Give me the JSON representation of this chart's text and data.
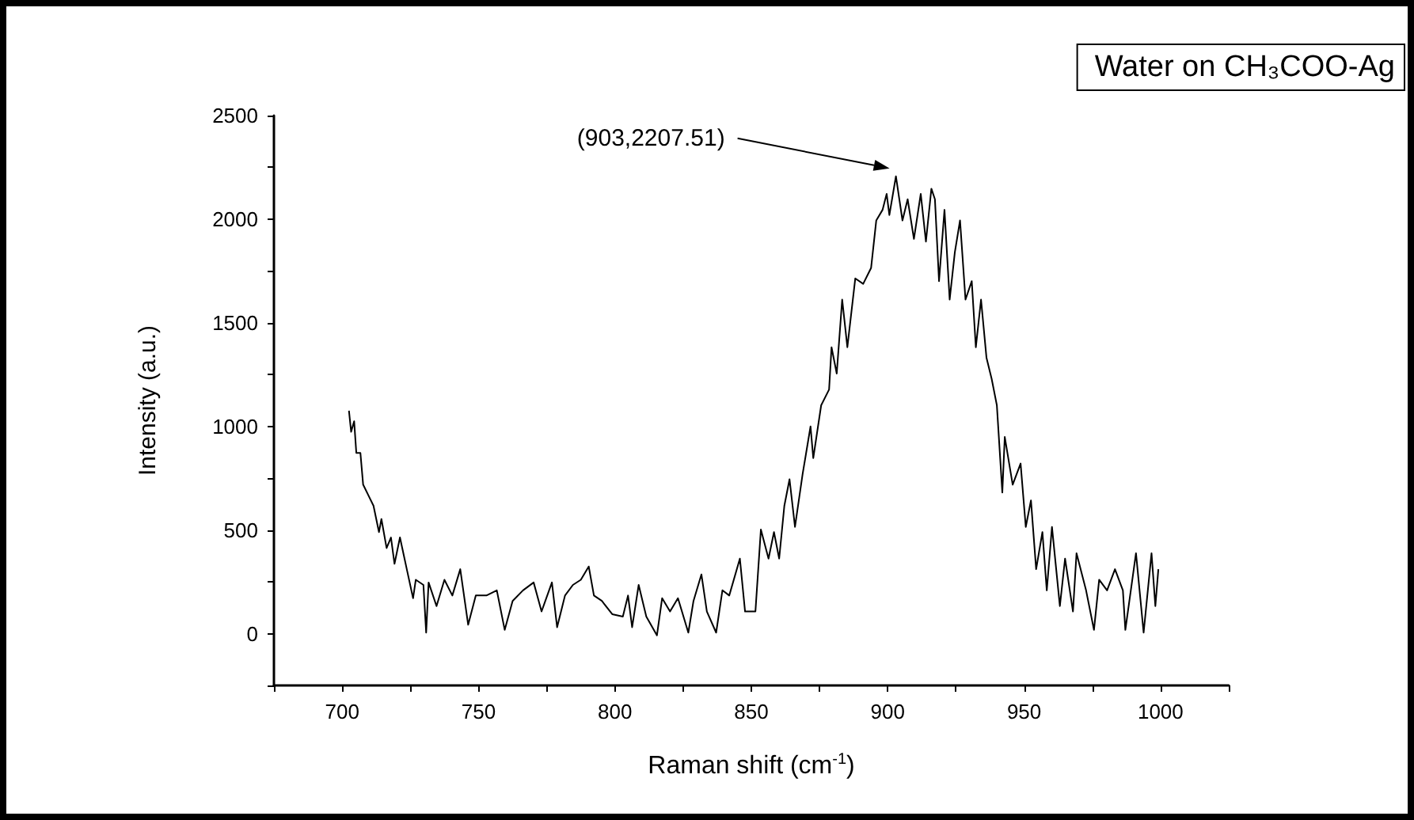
{
  "chart_data": {
    "type": "line",
    "xlabel": "Raman shift (cm$^{-1}$)",
    "ylabel": "Intensity (a.u.)",
    "xlim": [
      675,
      1025
    ],
    "xticks": [
      {
        "value": 675,
        "label": null
      },
      700,
      {
        "value": 725,
        "label": null
      },
      750,
      {
        "value": 775,
        "label": null
      },
      800,
      {
        "value": 825,
        "label": null
      },
      850,
      {
        "value": 875,
        "label": null
      },
      900,
      {
        "value": 925,
        "label": null
      },
      950,
      {
        "value": 975,
        "label": null
      },
      1000,
      {
        "value": 1025,
        "label": null
      }
    ],
    "ylim": [
      -250,
      2500
    ],
    "yticks": [
      {
        "value": -250,
        "label": null
      },
      0,
      {
        "value": 250,
        "label": null
      },
      500,
      {
        "value": 750,
        "label": null
      },
      1000,
      {
        "value": 1250,
        "label": null
      },
      1500,
      {
        "value": 1750,
        "label": null
      },
      2000,
      {
        "value": 2250,
        "label": null
      },
      2500
    ],
    "grid": false,
    "legend": "top right",
    "marker": "none",
    "line_style": "solid",
    "annotations": [
      "(903,2207.51)"
    ],
    "x": [
      702.5,
      703.3,
      704.4,
      705.2,
      706.7,
      707.7,
      709.6,
      711.5,
      713.5,
      714.4,
      716.3,
      717.9,
      719.2,
      721.2,
      723.7,
      726,
      727,
      729.8,
      730.8,
      731.7,
      734.6,
      737.5,
      740.4,
      743.3,
      746.2,
      749,
      752.9,
      756.7,
      759.6,
      762.5,
      766.3,
      770.2,
      773.1,
      776.9,
      778.8,
      781.7,
      784.6,
      787.5,
      790.4,
      792.3,
      795.2,
      799,
      802.9,
      804.8,
      806.3,
      808.7,
      811.5,
      815.4,
      817.3,
      820.2,
      823.1,
      826.9,
      828.8,
      831.7,
      833.7,
      837.1,
      839.4,
      841.9,
      845.8,
      847.7,
      851.5,
      853.5,
      856.3,
      858.3,
      860.2,
      862.1,
      864,
      866,
      868.8,
      871.7,
      872.7,
      875.6,
      878.5,
      879.4,
      881.3,
      883.3,
      885.2,
      888.1,
      891,
      893.9,
      895.8,
      898.1,
      899.6,
      900.6,
      903,
      905.4,
      907.3,
      909.6,
      912.1,
      914,
      916,
      917.3,
      918.8,
      920.8,
      922.7,
      924.6,
      926.5,
      928.5,
      930.8,
      932.3,
      934.2,
      936.2,
      938.1,
      940,
      942,
      942.9,
      945.8,
      948.7,
      950.6,
      952.5,
      954.4,
      956.7,
      958.3,
      960.2,
      963.1,
      965,
      967.9,
      969.2,
      972.7,
      975.6,
      977.5,
      980.4,
      983.3,
      986.2,
      987.1,
      991,
      993.8,
      996.7,
      998.1,
      999.2
    ],
    "series": [
      {
        "name": "Water on CH₃COO-Ag",
        "color": "#000000",
        "values": [
          1076,
          974,
          1025,
          872,
          872,
          719,
          668,
          617,
          490,
          553,
          413,
          464,
          337,
          464,
          311,
          171,
          260,
          235,
          5,
          247,
          133,
          260,
          184,
          311,
          43,
          184,
          184,
          209,
          18,
          158,
          209,
          247,
          107,
          247,
          31,
          184,
          235,
          260,
          324,
          184,
          158,
          94,
          82,
          184,
          31,
          235,
          82,
          -8,
          171,
          107,
          171,
          5,
          158,
          286,
          107,
          5,
          209,
          184,
          362,
          107,
          107,
          502,
          362,
          490,
          362,
          617,
          745,
          515,
          770,
          1000,
          847,
          1102,
          1178,
          1382,
          1255,
          1612,
          1382,
          1714,
          1688,
          1765,
          1994,
          2045,
          2122,
          2020,
          2207,
          1994,
          2096,
          1905,
          2122,
          1892,
          2147,
          2096,
          1701,
          2045,
          1612,
          1841,
          1994,
          1612,
          1701,
          1382,
          1612,
          1331,
          1229,
          1102,
          681,
          949,
          719,
          821,
          515,
          643,
          311,
          490,
          209,
          515,
          133,
          362,
          107,
          388,
          209,
          18,
          260,
          209,
          311,
          209,
          18,
          388,
          5,
          388,
          133,
          311
        ]
      }
    ]
  }
}
